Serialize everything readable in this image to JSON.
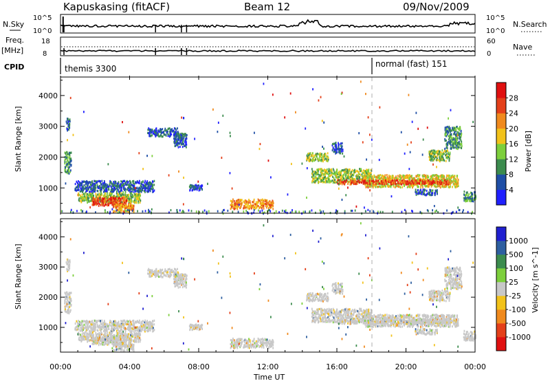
{
  "header": {
    "station": "Kapuskasing (fitACF)",
    "beam": "Beam 12",
    "date": "09/Nov/2009"
  },
  "top_panels": {
    "nsky_label": "N.Sky",
    "nsky_ticks": [
      "10^5",
      "10^0"
    ],
    "nsearch_label": "N.Search",
    "nsearch_ticks": [
      "10^5",
      "10^0"
    ],
    "freq_label_1": "Freq.",
    "freq_label_2": "[MHz]",
    "freq_ticks": [
      "18",
      "8"
    ],
    "nave_label": "Nave",
    "nave_ticks": [
      "60",
      "0"
    ],
    "cpid_label": "CPID",
    "cpid_modes": [
      {
        "name": "themis 3300",
        "start_hour": 0
      },
      {
        "name": "normal (fast) 151",
        "start_hour": 18
      }
    ]
  },
  "chart_data": [
    {
      "type": "heatmap",
      "name": "power",
      "ylabel": "Slant Range [km]",
      "ylim": [
        180,
        4600
      ],
      "yticks": [
        1000,
        2000,
        3000,
        4000
      ],
      "xlim": [
        0,
        24
      ],
      "xlabels": [
        "00:00",
        "04:00",
        "08:00",
        "12:00",
        "16:00",
        "20:00",
        "00:00"
      ],
      "xlabel": "Time UT",
      "colorbar_label": "Power [dB]",
      "colorbar_ticks": [
        "4",
        "8",
        "12",
        "16",
        "20",
        "24",
        "28"
      ],
      "colorbar_colors": [
        "#2020ff",
        "#1f4fa6",
        "#3c8c4e",
        "#7dcf3c",
        "#f2c21a",
        "#f08a1e",
        "#e4401a",
        "#e01010"
      ],
      "scatter_bands": [
        {
          "t_start": 0.2,
          "t_end": 0.6,
          "r_low": 1500,
          "r_high": 2200,
          "level": 2
        },
        {
          "t_start": 0.3,
          "t_end": 0.5,
          "r_low": 2900,
          "r_high": 3300,
          "level": 1
        },
        {
          "t_start": 0.8,
          "t_end": 5.4,
          "r_low": 900,
          "r_high": 1250,
          "level": 1
        },
        {
          "t_start": 1.0,
          "t_end": 4.6,
          "r_low": 550,
          "r_high": 850,
          "level": 3
        },
        {
          "t_start": 1.8,
          "t_end": 3.8,
          "r_low": 450,
          "r_high": 720,
          "level": 6
        },
        {
          "t_start": 3.0,
          "t_end": 4.2,
          "r_low": 250,
          "r_high": 500,
          "level": 5
        },
        {
          "t_start": 5.0,
          "t_end": 6.8,
          "r_low": 2700,
          "r_high": 2950,
          "level": 1
        },
        {
          "t_start": 6.5,
          "t_end": 7.3,
          "r_low": 2350,
          "r_high": 2800,
          "level": 1
        },
        {
          "t_start": 7.4,
          "t_end": 8.2,
          "r_low": 950,
          "r_high": 1150,
          "level": 1
        },
        {
          "t_start": 9.8,
          "t_end": 12.3,
          "r_low": 350,
          "r_high": 650,
          "level": 5
        },
        {
          "t_start": 14.2,
          "t_end": 15.5,
          "r_low": 1900,
          "r_high": 2150,
          "level": 3
        },
        {
          "t_start": 15.7,
          "t_end": 16.3,
          "r_low": 2150,
          "r_high": 2500,
          "level": 1
        },
        {
          "t_start": 14.5,
          "t_end": 18.0,
          "r_low": 1200,
          "r_high": 1650,
          "level": 3
        },
        {
          "t_start": 17.5,
          "t_end": 23.0,
          "r_low": 1050,
          "r_high": 1450,
          "level": 4
        },
        {
          "t_start": 16.0,
          "t_end": 22.5,
          "r_low": 1150,
          "r_high": 1300,
          "level": 6
        },
        {
          "t_start": 21.3,
          "t_end": 22.5,
          "r_low": 1900,
          "r_high": 2250,
          "level": 3
        },
        {
          "t_start": 22.2,
          "t_end": 23.2,
          "r_low": 2300,
          "r_high": 3000,
          "level": 2
        },
        {
          "t_start": 23.3,
          "t_end": 24.0,
          "r_low": 600,
          "r_high": 900,
          "level": 2
        },
        {
          "t_start": 20.5,
          "t_end": 21.8,
          "r_low": 800,
          "r_high": 1000,
          "level": 1
        }
      ]
    },
    {
      "type": "heatmap",
      "name": "velocity",
      "ylabel": "Slant Range [km]",
      "ylim": [
        180,
        4600
      ],
      "yticks": [
        1000,
        2000,
        3000,
        4000
      ],
      "xlim": [
        0,
        24
      ],
      "xlabels": [
        "00:00",
        "04:00",
        "08:00",
        "12:00",
        "16:00",
        "20:00",
        "00:00"
      ],
      "xlabel": "Time UT",
      "colorbar_label": "Velocity [m s^-1]",
      "colorbar_ticks": [
        "1000",
        "500",
        "100",
        "25",
        "-25",
        "-100",
        "-500",
        "-1000"
      ],
      "colorbar_colors": [
        "#2020d0",
        "#2e5fa0",
        "#3c8c4e",
        "#7dcf3c",
        "#c8c8c8",
        "#f2c21a",
        "#f08a1e",
        "#e4401a",
        "#e01010"
      ]
    }
  ]
}
